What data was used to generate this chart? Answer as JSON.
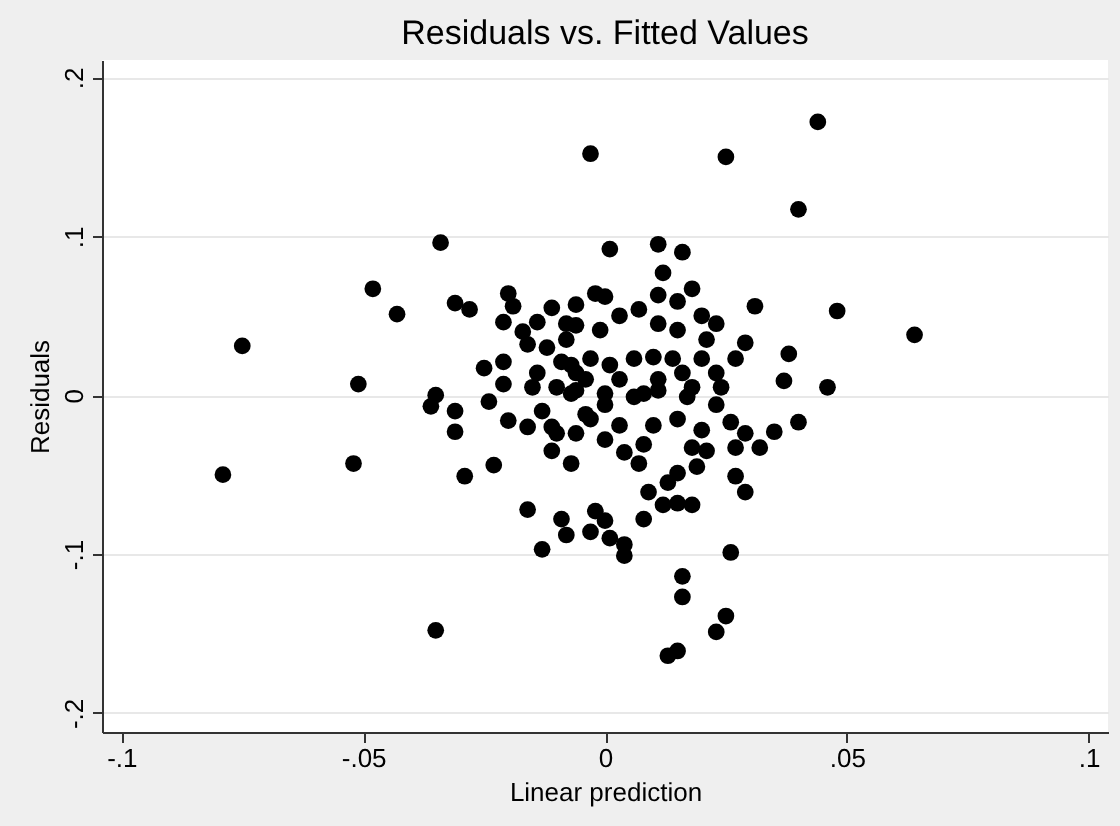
{
  "chart_data": {
    "type": "scatter",
    "title": "Residuals vs. Fitted Values",
    "xlabel": "Linear prediction",
    "ylabel": "Residuals",
    "x": [
      -0.034,
      -0.048,
      -0.043,
      -0.031,
      -0.028,
      -0.075,
      -0.051,
      -0.035,
      -0.02,
      -0.019,
      -0.021,
      -0.016,
      -0.025,
      -0.021,
      -0.021,
      -0.024,
      -0.014,
      -0.011,
      -0.006,
      -0.008,
      -0.009,
      -0.006,
      -0.014,
      -0.015,
      -0.036,
      -0.031,
      -0.031,
      -0.02,
      -0.016,
      -0.013,
      -0.011,
      -0.007,
      -0.079,
      -0.052,
      -0.029,
      -0.023,
      -0.016,
      -0.009,
      -0.008,
      -0.013,
      -0.035,
      -0.01,
      0.037,
      0.046,
      0.04,
      0.035,
      0.032,
      0.027,
      0.029,
      0.026,
      0.021,
      0.019,
      0.018,
      0.015,
      0.013,
      0.027,
      0.029,
      0.009,
      0.012,
      0.015,
      0.018,
      0.008,
      0.007,
      0.004,
      -0.002,
      0.0,
      -0.003,
      0.001,
      0.004,
      0.004,
      0.026,
      0.016,
      0.016,
      0.025,
      0.023,
      0.013,
      0.015,
      -0.003,
      0.025,
      0.044,
      0.04,
      0.001,
      0.011,
      0.016,
      0.012,
      0.018,
      0.011,
      0.015,
      0.007,
      0.031,
      0.048,
      0.064,
      0.02,
      0.023,
      0.011,
      0.015,
      0.029,
      0.038,
      0.027,
      -0.002,
      0.0,
      0.003,
      -0.006,
      -0.001,
      0.021,
      0.02,
      0.023,
      0.016,
      0.014,
      0.01,
      0.006,
      0.001,
      -0.003,
      -0.007,
      -0.004,
      0.003,
      0.011,
      0.018,
      0.024,
      0.008,
      0.0,
      -0.007,
      -0.006,
      0.0,
      0.006,
      0.011,
      0.017,
      0.023,
      -0.003,
      0.003,
      0.01,
      0.015,
      0.02,
      0.008,
      0.0,
      -0.006,
      -0.012,
      -0.01,
      -0.004,
      -0.011,
      -0.017,
      -0.008
    ],
    "values": [
      0.096,
      0.067,
      0.051,
      0.058,
      0.054,
      0.031,
      0.007,
      0.0,
      0.064,
      0.056,
      0.046,
      0.032,
      0.017,
      0.021,
      0.007,
      -0.004,
      0.046,
      0.055,
      0.057,
      0.035,
      0.021,
      0.014,
      0.014,
      0.005,
      -0.007,
      -0.01,
      -0.023,
      -0.016,
      -0.02,
      -0.01,
      -0.035,
      -0.043,
      -0.05,
      -0.043,
      -0.051,
      -0.044,
      -0.072,
      -0.078,
      -0.088,
      -0.097,
      -0.148,
      -0.024,
      0.009,
      0.005,
      -0.017,
      -0.023,
      -0.033,
      -0.033,
      -0.024,
      -0.017,
      -0.035,
      -0.045,
      -0.033,
      -0.049,
      -0.055,
      -0.051,
      -0.061,
      -0.061,
      -0.069,
      -0.068,
      -0.069,
      -0.078,
      -0.043,
      -0.036,
      -0.073,
      -0.079,
      -0.086,
      -0.09,
      -0.094,
      -0.101,
      -0.099,
      -0.114,
      -0.127,
      -0.139,
      -0.149,
      -0.164,
      -0.161,
      0.152,
      0.15,
      0.172,
      0.117,
      0.092,
      0.095,
      0.09,
      0.077,
      0.067,
      0.063,
      0.059,
      0.054,
      0.056,
      0.053,
      0.038,
      0.05,
      0.045,
      0.045,
      0.041,
      0.033,
      0.026,
      0.023,
      0.064,
      0.062,
      0.05,
      0.044,
      0.041,
      0.035,
      0.023,
      0.014,
      0.014,
      0.023,
      0.024,
      0.023,
      0.019,
      0.023,
      0.019,
      0.01,
      0.01,
      0.01,
      0.005,
      0.005,
      0.001,
      0.001,
      0.001,
      0.003,
      -0.006,
      -0.001,
      0.003,
      -0.001,
      -0.006,
      -0.015,
      -0.019,
      -0.019,
      -0.015,
      -0.022,
      -0.031,
      -0.028,
      -0.024,
      0.03,
      0.005,
      -0.012,
      -0.02,
      0.04,
      0.045
    ],
    "color": "#000000",
    "marker": "circle",
    "xlim": [
      -0.104,
      0.104
    ],
    "ylim": [
      -0.212,
      0.211
    ],
    "xticks": [
      {
        "value": -0.1,
        "label": "-.1"
      },
      {
        "value": -0.05,
        "label": "-.05"
      },
      0,
      {
        "value": 0.05,
        "label": ".05"
      },
      {
        "value": 0.1,
        "label": ".1"
      }
    ],
    "yticks": [
      {
        "value": -0.2,
        "label": "-.2"
      },
      {
        "value": -0.1,
        "label": "-.1"
      },
      0,
      {
        "value": 0.1,
        "label": ".1"
      },
      {
        "value": 0.2,
        "label": ".2"
      }
    ],
    "grid": "y"
  }
}
